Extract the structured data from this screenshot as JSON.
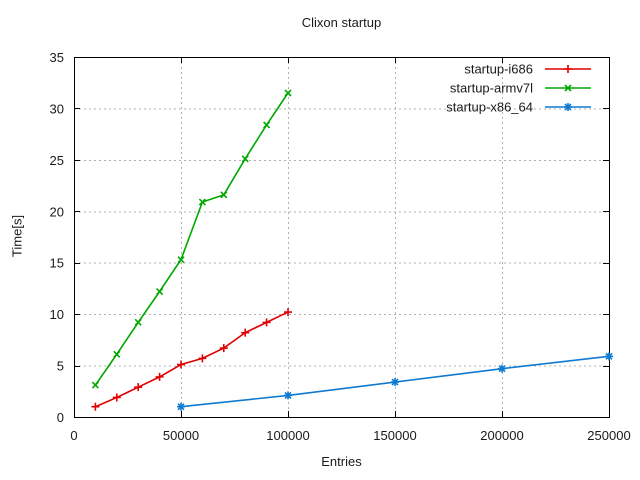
{
  "title": "Clixon startup",
  "colors": {
    "background": "#ffffff",
    "axis": "#000000",
    "grid": "#b0b0b0",
    "text": "#1a1a1a",
    "series_red": "#e00000",
    "series_green": "#00a800",
    "series_blue": "#0f7ad2"
  },
  "chart_data": {
    "type": "line",
    "title": "Clixon startup",
    "xlabel": "Entries",
    "ylabel": "Time[s]",
    "xlim": [
      0,
      250000
    ],
    "ylim": [
      0,
      35
    ],
    "xticks": [
      0,
      50000,
      100000,
      150000,
      200000,
      250000
    ],
    "yticks": [
      0,
      5,
      10,
      15,
      20,
      25,
      30,
      35
    ],
    "grid": true,
    "legend_position": "top-right-inside",
    "series": [
      {
        "name": "startup-i686",
        "color": "#e00000",
        "marker": "plus",
        "x": [
          10000,
          20000,
          30000,
          40000,
          50000,
          60000,
          70000,
          80000,
          90000,
          100000
        ],
        "y": [
          1.0,
          1.9,
          2.9,
          3.9,
          5.1,
          5.7,
          6.7,
          8.2,
          9.2,
          10.2
        ]
      },
      {
        "name": "startup-armv7l",
        "color": "#00a800",
        "marker": "cross",
        "x": [
          10000,
          20000,
          30000,
          40000,
          50000,
          60000,
          70000,
          80000,
          90000,
          100000
        ],
        "y": [
          3.1,
          6.1,
          9.2,
          12.2,
          15.3,
          20.9,
          21.6,
          25.1,
          28.4,
          31.5
        ]
      },
      {
        "name": "startup-x86_64",
        "color": "#0f7ad2",
        "marker": "asterisk",
        "x": [
          50000,
          100000,
          150000,
          200000,
          250000
        ],
        "y": [
          1.0,
          2.1,
          3.4,
          4.7,
          5.9
        ]
      }
    ]
  }
}
